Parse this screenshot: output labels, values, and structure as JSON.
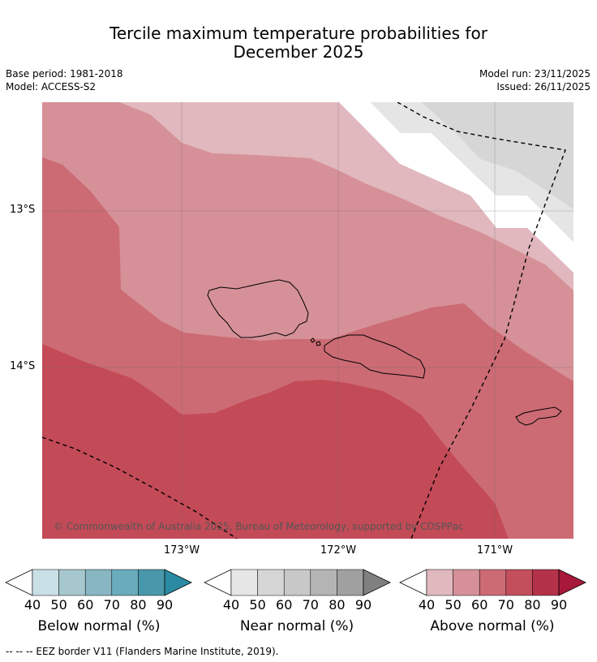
{
  "title_line1": "Tercile maximum temperature probabilities for",
  "title_line2": "December 2025",
  "base_period": "Base period: 1981-2018",
  "model": "Model: ACCESS-S2",
  "model_run": "Model run: 23/11/2025",
  "issued": "Issued: 26/11/2025",
  "copyright": "© Commonwealth of Australia 2025, Bureau of Meteorology, supported by COSPPac",
  "lat_labels": [
    "13°S",
    "14°S"
  ],
  "lon_labels": [
    "173°W",
    "172°W",
    "171°W"
  ],
  "legends": {
    "below": {
      "caption": "Below normal (%)",
      "ticks": [
        "40",
        "50",
        "60",
        "70",
        "80",
        "90"
      ],
      "colors": [
        "#ffffff",
        "#c8e0e6",
        "#a6c7cd",
        "#88b6c3",
        "#6aacbb",
        "#4997ab",
        "#2a8ba3"
      ]
    },
    "near": {
      "caption": "Near normal (%)",
      "ticks": [
        "40",
        "50",
        "60",
        "70",
        "80",
        "90"
      ],
      "colors": [
        "#ffffff",
        "#e6e6e6",
        "#d6d6d6",
        "#c8c8c8",
        "#b4b4b4",
        "#a0a0a0",
        "#808080"
      ]
    },
    "above": {
      "caption": "Above normal (%)",
      "ticks": [
        "40",
        "50",
        "60",
        "70",
        "80",
        "90"
      ],
      "colors": [
        "#ffffff",
        "#e0b8bd",
        "#d69097",
        "#cc6b74",
        "#c34f5c",
        "#b43249",
        "#a8183a"
      ]
    }
  },
  "map_colors": {
    "above_40": "#e0b8bd",
    "above_50": "#d69097",
    "above_60": "#cc6b74",
    "above_70": "#c34a57",
    "near_50": "#e5e5e5",
    "near_60": "#d6d6d6"
  },
  "eez_footnote": "--  --  -- EEZ border V11 (Flanders Marine Institute, 2019)."
}
